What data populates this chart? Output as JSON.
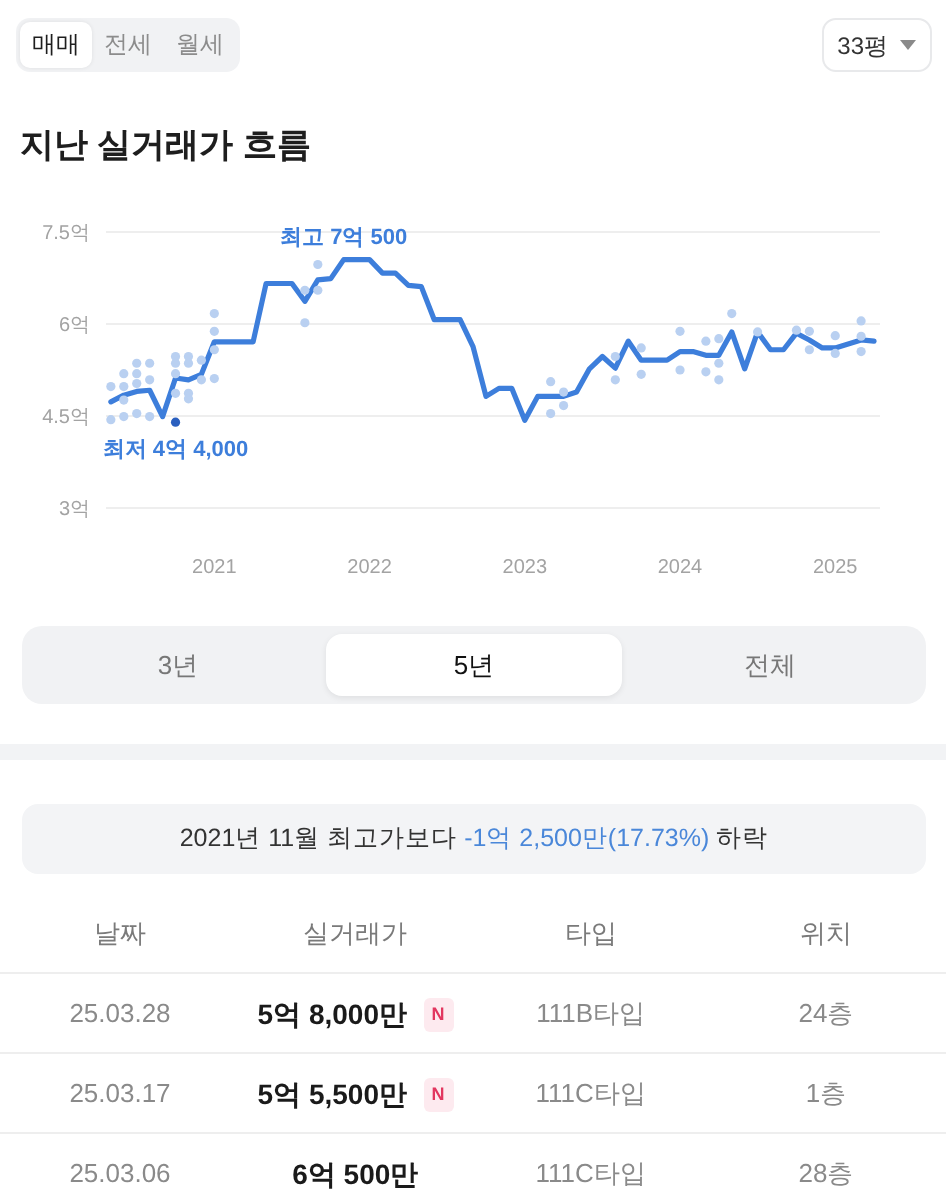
{
  "chart_data": [
    {
      "type": "other",
      "categories": [
        "매매",
        "전세",
        "월세"
      ],
      "annotations": [
        "33평"
      ]
    },
    {
      "type": "line",
      "title": "지난 실거래가 흐름",
      "xlim": [
        "2020-04-20",
        "2025-04-15"
      ],
      "xticks": [
        "2021",
        "2022",
        "2023",
        "2024",
        "2025"
      ],
      "ylim": [
        3,
        7.5
      ],
      "yticks": [
        {
          "value": 3,
          "label": "3억"
        },
        {
          "value": 4.5,
          "label": "4.5억"
        },
        {
          "value": 6,
          "label": "6억"
        },
        {
          "value": 7.5,
          "label": "7.5억"
        }
      ],
      "grid": "y",
      "series": [
        {
          "type": "line",
          "color": "#3d7edb",
          "x": [
            "2020-05",
            "2020-06",
            "2020-07",
            "2020-08",
            "2020-09",
            "2020-10",
            "2020-11",
            "2020-12",
            "2021-01",
            "2021-04",
            "2021-05",
            "2021-07",
            "2021-08",
            "2021-09",
            "2021-10",
            "2021-11",
            "2022-01",
            "2022-02",
            "2022-03",
            "2022-04",
            "2022-05",
            "2022-06",
            "2022-08",
            "2022-09",
            "2022-10",
            "2022-11",
            "2022-12",
            "2023-01",
            "2023-02",
            "2023-04",
            "2023-05",
            "2023-06",
            "2023-07",
            "2023-08",
            "2023-09",
            "2023-10",
            "2023-12",
            "2024-01",
            "2024-02",
            "2024-03",
            "2024-04",
            "2024-05",
            "2024-06",
            "2024-07",
            "2024-08",
            "2024-09",
            "2024-10",
            "2024-11",
            "2024-12",
            "2025-01",
            "2025-03",
            "2025-04"
          ],
          "values": [
            4.73,
            4.84,
            4.9,
            4.92,
            4.49,
            5.12,
            5.09,
            5.18,
            5.71,
            5.71,
            6.66,
            6.66,
            6.37,
            6.72,
            6.74,
            7.05,
            7.05,
            6.83,
            6.83,
            6.63,
            6.61,
            6.07,
            6.07,
            5.63,
            4.82,
            4.95,
            4.95,
            4.43,
            4.82,
            4.82,
            4.89,
            5.27,
            5.47,
            5.28,
            5.72,
            5.41,
            5.41,
            5.55,
            5.55,
            5.49,
            5.49,
            5.87,
            5.27,
            5.87,
            5.58,
            5.58,
            5.85,
            5.74,
            5.61,
            5.61,
            5.74,
            5.72
          ]
        },
        {
          "type": "scatter",
          "color": "#b9d0f1",
          "x": [
            "2020-05",
            "2020-05",
            "2020-06",
            "2020-06",
            "2020-06",
            "2020-06",
            "2020-07",
            "2020-07",
            "2020-07",
            "2020-07",
            "2020-08",
            "2020-08",
            "2020-08",
            "2020-10",
            "2020-10",
            "2020-10",
            "2020-10",
            "2020-11",
            "2020-11",
            "2020-11",
            "2020-11",
            "2020-12",
            "2020-12",
            "2021-01",
            "2021-01",
            "2021-01",
            "2021-01",
            "2021-08",
            "2021-08",
            "2021-09",
            "2021-09",
            "2023-03",
            "2023-03",
            "2023-04",
            "2023-04",
            "2023-08",
            "2023-08",
            "2023-10",
            "2023-10",
            "2024-01",
            "2024-01",
            "2024-03",
            "2024-03",
            "2024-04",
            "2024-04",
            "2024-04",
            "2024-05",
            "2024-07",
            "2024-10",
            "2024-11",
            "2024-11",
            "2025-01",
            "2025-01",
            "2025-03",
            "2025-03",
            "2025-03"
          ],
          "values": [
            4.98,
            4.44,
            5.19,
            4.98,
            4.76,
            4.49,
            5.36,
            5.19,
            5.03,
            4.54,
            5.36,
            5.09,
            4.49,
            5.47,
            5.36,
            5.19,
            4.87,
            5.47,
            5.36,
            4.87,
            4.78,
            5.41,
            5.09,
            6.17,
            5.88,
            5.58,
            5.11,
            6.55,
            6.02,
            6.97,
            6.55,
            5.06,
            4.54,
            4.89,
            4.67,
            5.47,
            5.09,
            5.61,
            5.18,
            5.88,
            5.25,
            5.72,
            5.22,
            5.76,
            5.36,
            5.09,
            6.17,
            5.87,
            5.9,
            5.88,
            5.58,
            5.81,
            5.52,
            6.05,
            5.8,
            5.55
          ]
        },
        {
          "type": "scatter",
          "color": "#2a5fbf",
          "x": [
            "2020-10"
          ],
          "values": [
            4.4
          ]
        }
      ],
      "annotations": [
        {
          "text": "최고 7억 500",
          "x": "2021-11",
          "y": 7.05
        },
        {
          "text": "최저 4억 4,000",
          "x": "2020-10",
          "y": 4.4
        }
      ]
    },
    {
      "type": "other",
      "categories": [
        "3년",
        "5년",
        "전체"
      ]
    },
    {
      "type": "other",
      "annotations": [
        "2021년 11월 최고가보다",
        "-1억 2,500만(17.73%)",
        "하락"
      ],
      "categories": [
        "날짜",
        "실거래가",
        "타입",
        "위치"
      ],
      "cell_labels": [
        [
          "25.03.28",
          "5억 8,000만",
          "111B타입",
          "24층"
        ],
        [
          "25.03.17",
          "5억 5,500만",
          "111C타입",
          "1층"
        ],
        [
          "25.03.06",
          "6억 500만",
          "111C타입",
          "28층"
        ]
      ],
      "value_labels": [
        "N",
        "N",
        null
      ]
    }
  ]
}
